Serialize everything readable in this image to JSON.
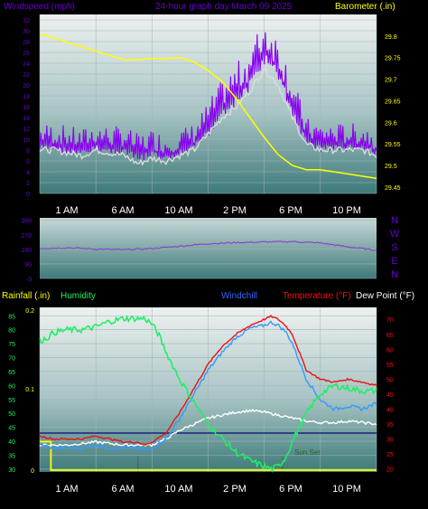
{
  "header": {
    "left_label": "Windspeed (mph)",
    "center_label": "24-hour graph day   March 09 2025",
    "right_label": "Barometer (.in)"
  },
  "x_axis": {
    "ticks": [
      "1 AM",
      "6 AM",
      "10 AM",
      "2 PM",
      "6 PM",
      "10 PM"
    ]
  },
  "colors": {
    "background": "#000000",
    "barometer": "#FFFF00",
    "wind_speed": "#8800EE",
    "wind_avg": "#DDDDDD",
    "wind_dir": "#8844CC",
    "humidity": "#22EE66",
    "windchill": "#3399FF",
    "temperature": "#EE1111",
    "dew_point": "#FFFFFF",
    "rainfall": "#FFFF00",
    "freezing_line": "#1A237E",
    "sunset_marker": "#2E7D32",
    "label_purple": "#6600CC",
    "label_blue": "#3366FF",
    "label_red": "#EE1111",
    "label_green": "#22EE66"
  },
  "chart_data": [
    {
      "type": "line",
      "id": "wind-baro",
      "title": "24-hour graph day   March 09 2025",
      "x_unit": "hours",
      "x_range": [
        0,
        24
      ],
      "left_axis": {
        "label": "Windspeed (mph)",
        "range": [
          0,
          33
        ],
        "ticks": [
          "0",
          "2",
          "4",
          "6",
          "8",
          "10",
          "12",
          "14",
          "16",
          "18",
          "20",
          "22",
          "24",
          "26",
          "28",
          "30",
          "32"
        ]
      },
      "right_axis": {
        "label": "Barometer (.in)",
        "range": [
          29.435,
          29.85
        ],
        "ticks": [
          "29.45",
          "29.5",
          "29.55",
          "29.6",
          "29.65",
          "29.7",
          "29.75",
          "29.8"
        ]
      },
      "series": [
        {
          "name": "Windspeed (mph)",
          "axis": "left",
          "style": "spiky",
          "x": [
            0,
            1,
            2,
            3,
            4,
            5,
            6,
            7,
            8,
            9,
            10,
            11,
            12,
            13,
            14,
            15,
            16,
            17,
            18,
            19,
            20,
            21,
            22,
            23,
            24
          ],
          "y": [
            9,
            9,
            8.5,
            8,
            9,
            8.5,
            8.5,
            7,
            8,
            7,
            8,
            9,
            12,
            16,
            18,
            21,
            26,
            23,
            16,
            10,
            9,
            9,
            9,
            9,
            8
          ],
          "amp": [
            4,
            4,
            4,
            4,
            4,
            4,
            4,
            4,
            4,
            4,
            4,
            4,
            5,
            5,
            6,
            6,
            7,
            6,
            6,
            4,
            4,
            4,
            4,
            4,
            4
          ]
        },
        {
          "name": "Average windspeed",
          "axis": "left",
          "x": [
            0,
            1,
            2,
            3,
            4,
            5,
            6,
            7,
            8,
            9,
            10,
            11,
            12,
            13,
            14,
            15,
            16,
            17,
            18,
            19,
            20,
            21,
            22,
            23,
            24
          ],
          "y": [
            8,
            8,
            7.5,
            7,
            8,
            7.5,
            7,
            5.5,
            6.5,
            6,
            7,
            8,
            11,
            14,
            16,
            19,
            23,
            20,
            14,
            9,
            8,
            8,
            8,
            8,
            7
          ]
        },
        {
          "name": "Barometer (.in)",
          "axis": "right",
          "x": [
            0,
            1,
            2,
            3,
            4,
            5,
            6,
            7,
            8,
            9,
            10,
            11,
            12,
            13,
            14,
            15,
            16,
            17,
            18,
            19,
            20,
            21,
            22,
            23,
            24
          ],
          "y": [
            29.805,
            29.795,
            29.785,
            29.775,
            29.765,
            29.755,
            29.745,
            29.745,
            29.748,
            29.748,
            29.75,
            29.74,
            29.72,
            29.695,
            29.655,
            29.61,
            29.565,
            29.525,
            29.5,
            29.49,
            29.49,
            29.485,
            29.48,
            29.475,
            29.47
          ]
        }
      ]
    },
    {
      "type": "line",
      "id": "wind-direction",
      "x_unit": "hours",
      "x_range": [
        0,
        24
      ],
      "left_axis": {
        "range": [
          0,
          375
        ],
        "ticks": [
          "0",
          "90",
          "180",
          "270",
          "360"
        ]
      },
      "right_axis": {
        "labels": [
          "N",
          "W",
          "S",
          "E",
          "N"
        ]
      },
      "series": [
        {
          "name": "Wind direction",
          "x": [
            0,
            2,
            4,
            6,
            8,
            10,
            12,
            14,
            16,
            18,
            20,
            22,
            24
          ],
          "y": [
            185,
            190,
            182,
            178,
            185,
            200,
            215,
            222,
            226,
            228,
            220,
            195,
            175
          ]
        }
      ]
    },
    {
      "type": "line",
      "id": "temp-humidity",
      "x_unit": "hours",
      "x_range": [
        0,
        24
      ],
      "labels": {
        "rainfall": "Rainfall (.in)",
        "humidity": "Humidity",
        "windchill": "Windchill",
        "temperature": "Temperature (°F)",
        "dew_point": "Dew Point (°F)",
        "sunset": "Sun Set"
      },
      "left_axis": {
        "label": "Humidity",
        "range": [
          29,
          88
        ],
        "ticks": [
          "30",
          "35",
          "40",
          "45",
          "50",
          "55",
          "60",
          "65",
          "70",
          "75",
          "80",
          "85"
        ]
      },
      "rain_axis": {
        "label": "Rainfall (.in)",
        "range": [
          0,
          0.2
        ],
        "ticks": [
          "0",
          "0.1",
          "0.2"
        ]
      },
      "right_axis": {
        "label": "Temperature (°F)",
        "range": [
          19,
          74
        ],
        "ticks": [
          "20",
          "25",
          "30",
          "35",
          "40",
          "45",
          "50",
          "55",
          "60",
          "65",
          "70"
        ]
      },
      "freezing_line": 32,
      "sunset_hour": 17.3,
      "event_marker_hour": 7.0,
      "series": [
        {
          "name": "Humidity",
          "axis": "left",
          "x": [
            0,
            0.5,
            1,
            2,
            3,
            4,
            5,
            6,
            7,
            7.5,
            8,
            8.5,
            9,
            10,
            11,
            12,
            13,
            14,
            15,
            16,
            16.5,
            17,
            17.5,
            18,
            19,
            20,
            21,
            22,
            23,
            24
          ],
          "y": [
            76,
            77,
            79,
            80,
            80,
            81,
            83,
            84,
            84,
            84,
            82,
            78,
            72,
            62,
            54,
            46,
            41,
            36,
            33,
            31,
            30,
            31,
            34,
            40,
            50,
            57,
            60,
            59,
            58,
            58
          ]
        },
        {
          "name": "Rainfall (.in)",
          "axis": "rain",
          "step": true,
          "x": [
            0,
            0.8,
            0.8,
            24
          ],
          "y": [
            0.035,
            0.035,
            0,
            0
          ]
        },
        {
          "name": "Windchill",
          "axis": "right",
          "x": [
            0,
            1,
            2,
            3,
            4,
            5,
            6,
            7,
            7.5,
            8,
            9,
            10,
            11,
            12,
            13,
            14,
            15,
            16,
            16.5,
            17,
            17.5,
            18,
            18.5,
            19,
            20,
            21,
            22,
            23,
            24
          ],
          "y": [
            28,
            27,
            27,
            27,
            28,
            27,
            27,
            27,
            26,
            27,
            30,
            37,
            45,
            53,
            59,
            64,
            67,
            68,
            69,
            68,
            66,
            62,
            56,
            50,
            43,
            40,
            41,
            40,
            42
          ]
        },
        {
          "name": "Temperature (°F)",
          "axis": "right",
          "x": [
            0,
            1,
            2,
            3,
            4,
            5,
            6,
            7,
            7.5,
            8,
            9,
            10,
            11,
            12,
            13,
            14,
            15,
            16,
            16.5,
            17,
            17.5,
            18,
            18.5,
            19,
            20,
            21,
            22,
            23,
            24
          ],
          "y": [
            31,
            30,
            30,
            30,
            31,
            30,
            29,
            29,
            28,
            29,
            32,
            39,
            47,
            55,
            61,
            65,
            68,
            70,
            71,
            70,
            68,
            65,
            59,
            53,
            50,
            49,
            50,
            49,
            48
          ]
        },
        {
          "name": "Dew Point (°F)",
          "axis": "right",
          "x": [
            0,
            1,
            2,
            3,
            4,
            5,
            6,
            7,
            8,
            9,
            10,
            11,
            12,
            13,
            14,
            15,
            16,
            17,
            18,
            19,
            20,
            21,
            22,
            23,
            24
          ],
          "y": [
            28,
            28,
            28,
            28.5,
            29,
            28.5,
            28,
            28,
            28,
            30,
            33,
            35,
            37,
            38,
            39,
            39.5,
            39,
            38,
            37,
            36,
            35.5,
            35.5,
            36,
            35.5,
            35
          ]
        }
      ]
    }
  ]
}
